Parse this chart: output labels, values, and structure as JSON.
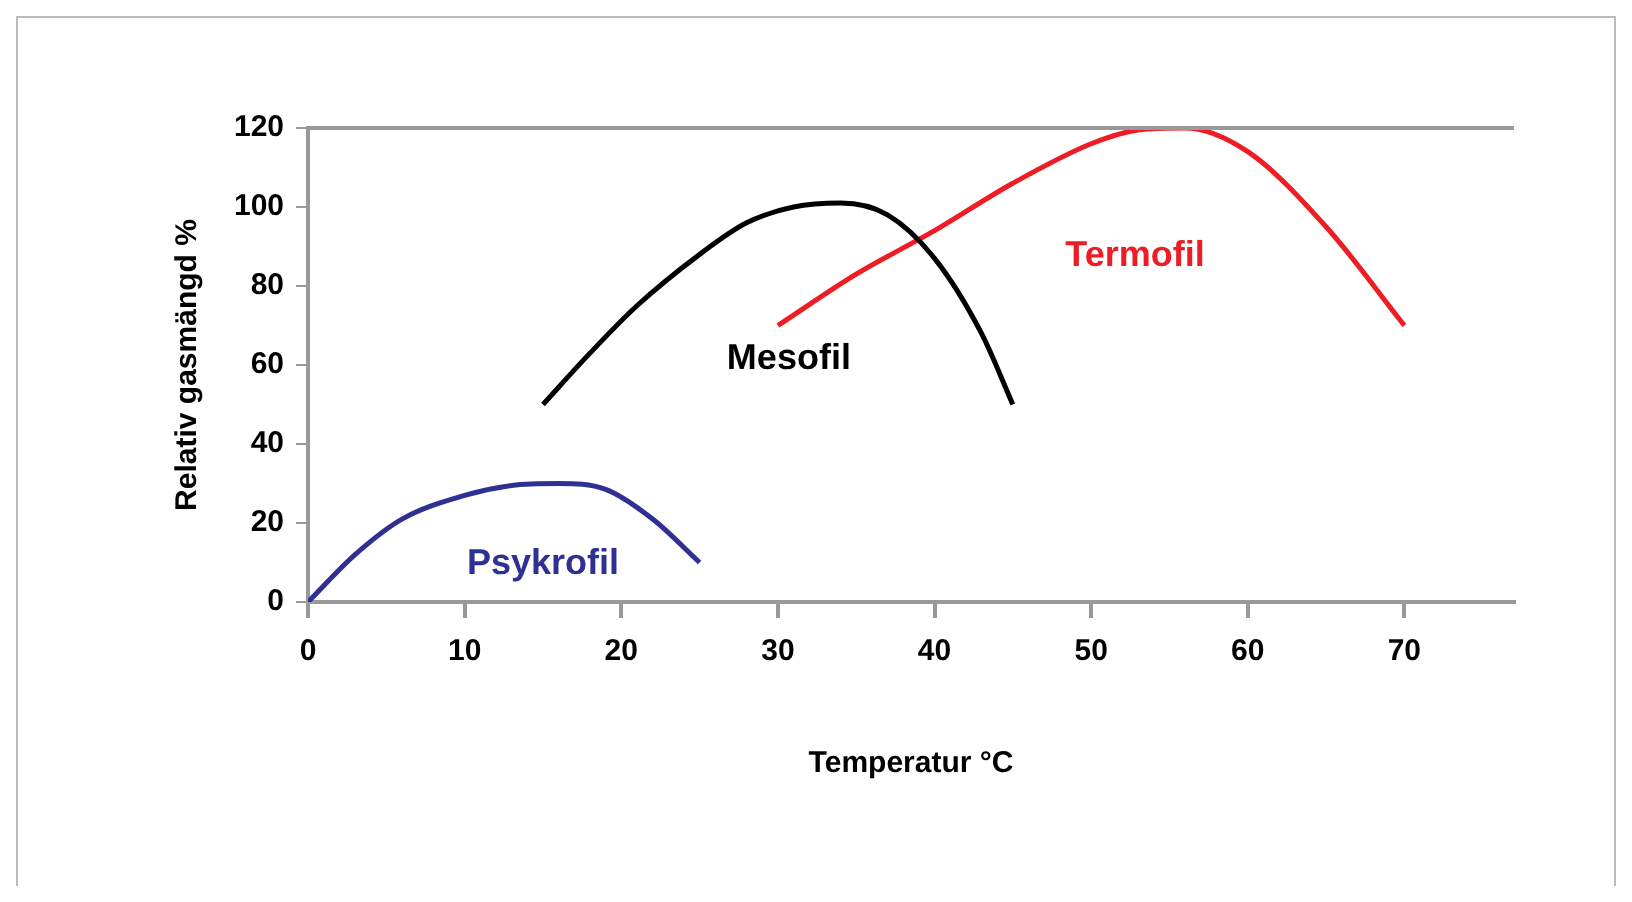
{
  "chart_data": {
    "type": "line",
    "xlabel": "Temperatur °C",
    "ylabel": "Relativ gasmängd %",
    "xlim": [
      0,
      77
    ],
    "xticks": [
      0,
      10,
      20,
      30,
      40,
      50,
      60,
      70
    ],
    "ylim": [
      0,
      120
    ],
    "yticks": [
      0,
      20,
      40,
      60,
      80,
      100,
      120
    ],
    "grid": false,
    "legend": false,
    "marker": "none",
    "line_style": "solid",
    "series": [
      {
        "name": "Psykrofil",
        "color": "#2e3192",
        "x": [
          0,
          3,
          6,
          10,
          13,
          16,
          19,
          22,
          25
        ],
        "values": [
          0,
          12,
          21,
          27,
          29.5,
          30,
          28.5,
          21,
          10
        ]
      },
      {
        "name": "Mesofil",
        "color": "#000000",
        "x": [
          15,
          18,
          21,
          25,
          28,
          31,
          34,
          37,
          40,
          43,
          45
        ],
        "values": [
          50,
          63,
          75,
          88,
          96,
          100,
          101,
          98,
          87,
          68,
          50
        ]
      },
      {
        "name": "Termofil",
        "color": "#ee1c24",
        "x": [
          30,
          35,
          40,
          45,
          50,
          53,
          56,
          60,
          65,
          70
        ],
        "values": [
          70,
          83,
          94,
          106,
          116,
          119.5,
          120,
          114,
          95,
          70
        ]
      }
    ]
  }
}
